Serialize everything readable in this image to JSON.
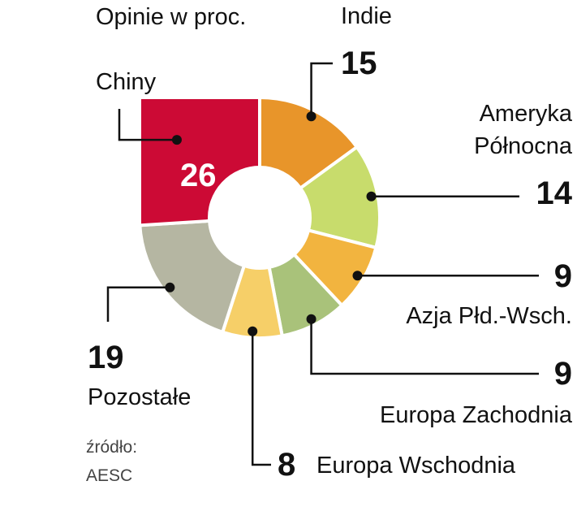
{
  "chart_data": {
    "type": "donut",
    "title": "Opinie w proc.",
    "categories": [
      "Indie",
      "Ameryka Północna",
      "Azja Płd.-Wsch.",
      "Europa Zachodnia",
      "Europa Wschodnia",
      "Pozostałe",
      "Chiny"
    ],
    "values": [
      15,
      14,
      9,
      9,
      8,
      19,
      26
    ],
    "colors": [
      "#e8952a",
      "#c8dc6c",
      "#f2b43f",
      "#a9c27a",
      "#f6cf68",
      "#b5b6a2",
      "#cc0a35"
    ],
    "highlight": "Chiny",
    "source": [
      "źródło:",
      "AESC"
    ]
  }
}
